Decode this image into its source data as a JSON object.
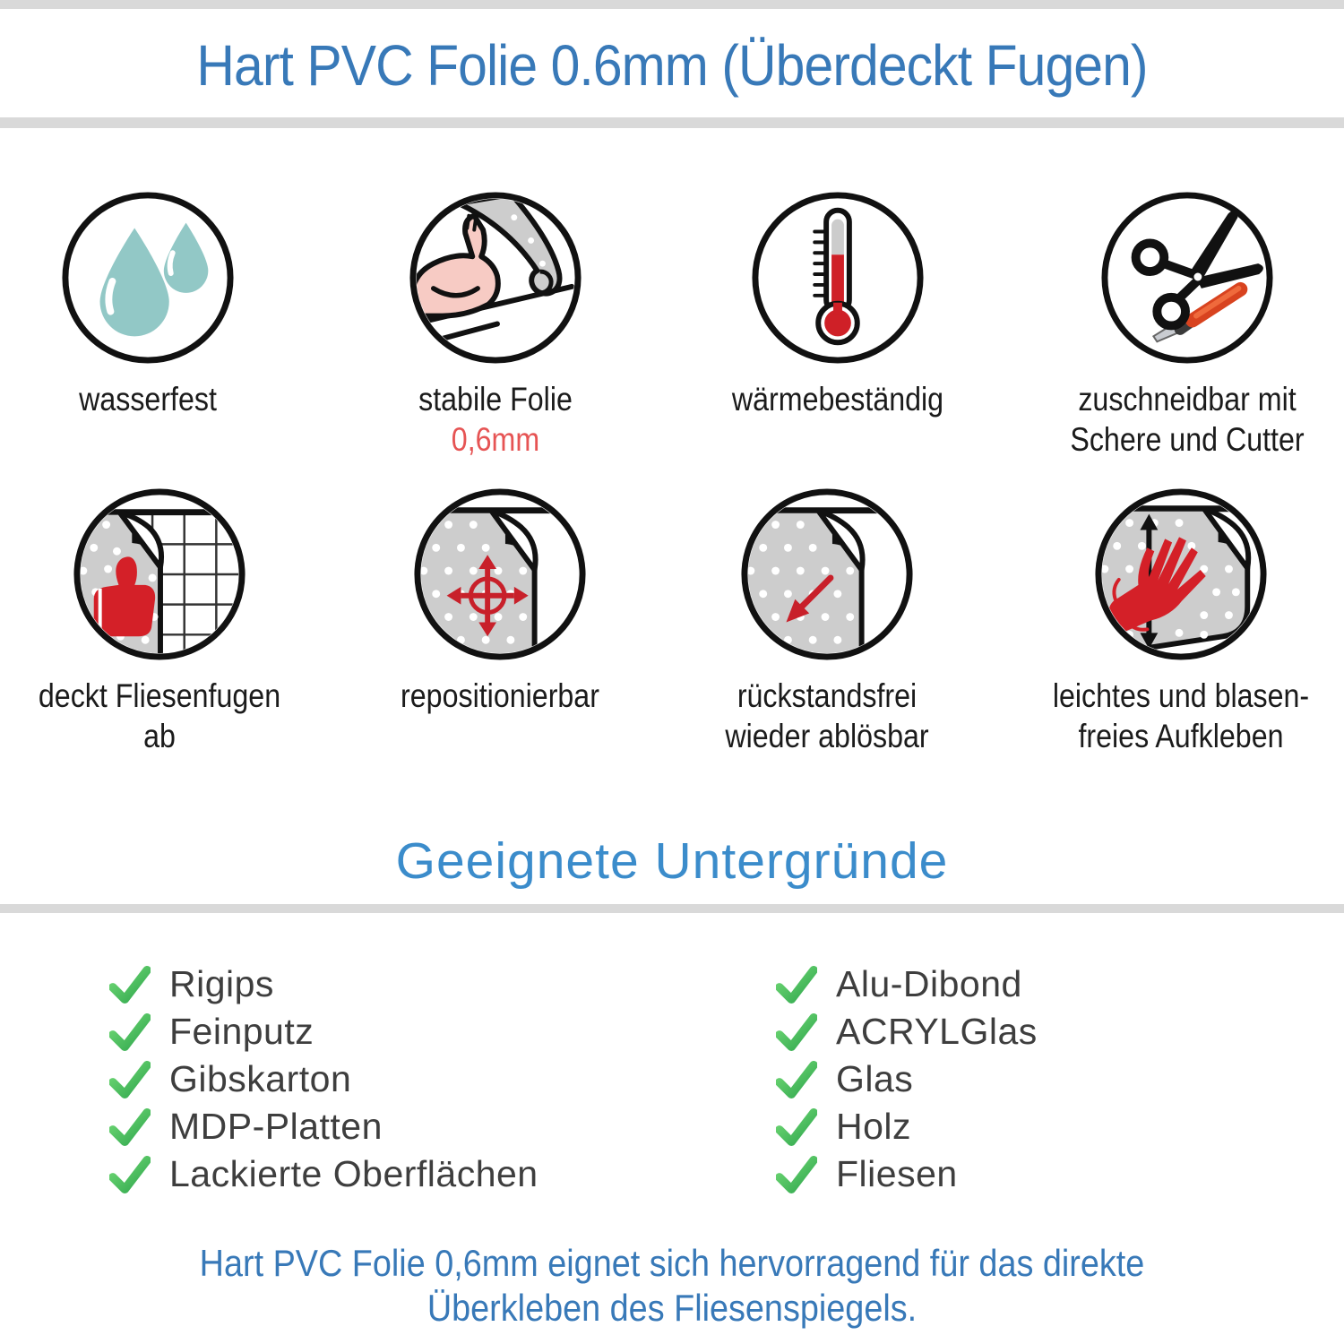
{
  "header": {
    "title": "Hart PVC Folie 0.6mm (Überdeckt Fugen)"
  },
  "features": [
    {
      "icon": "water-drops-icon",
      "label": "wasserfest",
      "label2": "",
      "sublabel": ""
    },
    {
      "icon": "muscle-arm-foil-icon",
      "label": "stabile Folie",
      "label2": "",
      "sublabel": "0,6mm"
    },
    {
      "icon": "thermometer-icon",
      "label": "wärmebeständig",
      "label2": "",
      "sublabel": ""
    },
    {
      "icon": "scissors-cutter-icon",
      "label": "zuschneidbar mit",
      "label2": "Schere und Cutter",
      "sublabel": ""
    },
    {
      "icon": "thumb-up-tiles-icon",
      "label": "deckt Fliesenfugen ab",
      "label2": "",
      "sublabel": ""
    },
    {
      "icon": "move-arrows-foil-icon",
      "label": "repositionierbar",
      "label2": "",
      "sublabel": ""
    },
    {
      "icon": "peel-arrow-foil-icon",
      "label": "rückstandsfrei",
      "label2": "wieder ablösbar",
      "sublabel": ""
    },
    {
      "icon": "hand-smooth-foil-icon",
      "label": "leichtes und blasen-",
      "label2": "freies Aufkleben",
      "sublabel": ""
    }
  ],
  "surfaces": {
    "title": "Geeignete Untergründe",
    "left": [
      "Rigips",
      "Feinputz",
      "Gibskarton",
      "MDP-Platten",
      "Lackierte Oberflächen"
    ],
    "right": [
      "Alu-Dibond",
      "ACRYLGlas",
      "Glas",
      "Holz",
      "Fliesen"
    ]
  },
  "footer": {
    "line1": "Hart PVC Folie 0,6mm eignet sich hervorragend für das direkte",
    "line2": "Überkleben des Fliesenspiegels."
  },
  "colors": {
    "accent_blue": "#3879b8",
    "bar_gray": "#d9d9d9",
    "check_green": "#3fae52",
    "icon_red": "#d42028",
    "sublabel_red": "#e65454",
    "drop_teal": "#92c8c6",
    "foil_gray": "#cdcdcd",
    "skin_pink": "#f7cbc4"
  }
}
